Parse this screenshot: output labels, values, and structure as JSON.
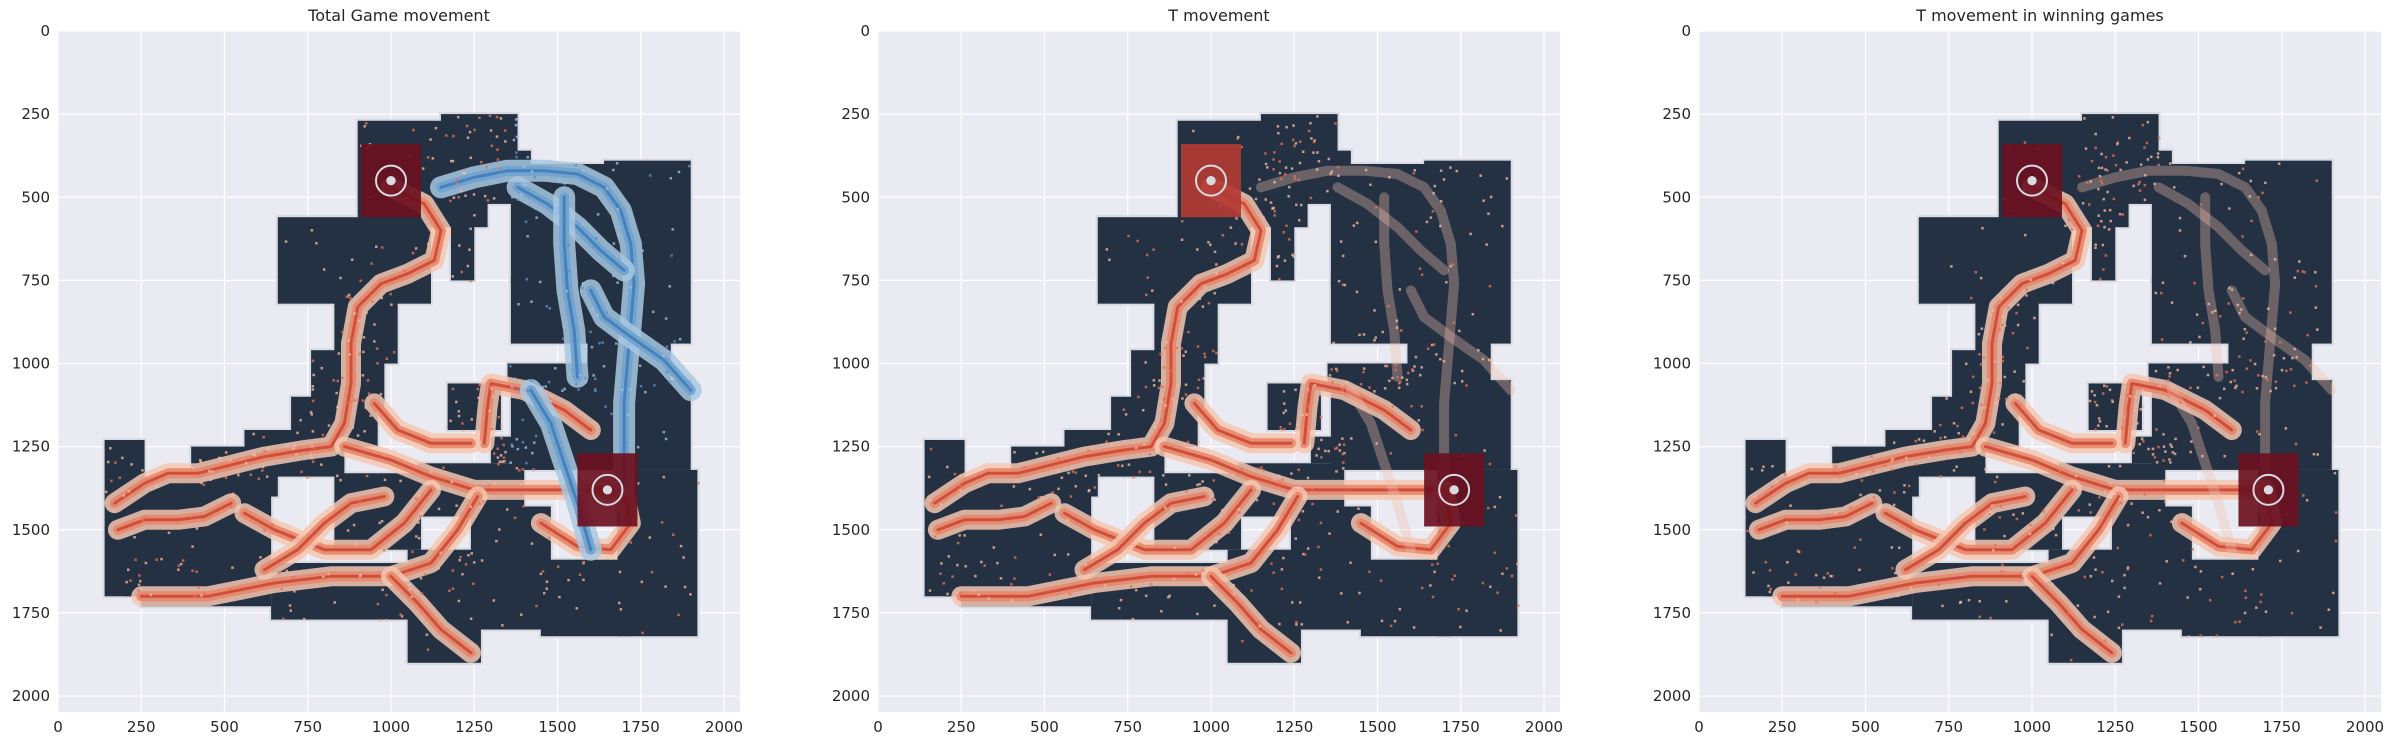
{
  "figure": {
    "background": "#ffffff",
    "axes_facecolor": "#eaeaf2",
    "grid_color": "#ffffff",
    "map_color": "#243142",
    "map_outline_color": "#d9dbe2"
  },
  "chart_data": [
    {
      "type": "heatmap",
      "title": "Total Game movement",
      "xlabel": "",
      "ylabel": "",
      "xlim": [
        0,
        2048
      ],
      "ylim": [
        2048,
        0
      ],
      "y_inverted": true,
      "grid": true,
      "xticks": [
        0,
        250,
        500,
        750,
        1000,
        1250,
        1500,
        1750,
        2000
      ],
      "yticks": [
        0,
        250,
        500,
        750,
        1000,
        1250,
        1500,
        1750,
        2000
      ],
      "colormaps": [
        "Reds",
        "Blues"
      ],
      "hotspots": [
        {
          "x": 1000,
          "y": 450,
          "intensity": "high",
          "colormap": "Reds"
        },
        {
          "x": 1650,
          "y": 1380,
          "intensity": "high",
          "colormap": "Reds"
        }
      ]
    },
    {
      "type": "heatmap",
      "title": "T movement",
      "xlabel": "",
      "ylabel": "",
      "xlim": [
        0,
        2048
      ],
      "ylim": [
        2048,
        0
      ],
      "y_inverted": true,
      "grid": true,
      "xticks": [
        0,
        250,
        500,
        750,
        1000,
        1250,
        1500,
        1750,
        2000
      ],
      "yticks": [
        0,
        250,
        500,
        750,
        1000,
        1250,
        1500,
        1750,
        2000
      ],
      "colormaps": [
        "Reds"
      ],
      "hotspots": [
        {
          "x": 1000,
          "y": 450,
          "intensity": "medium",
          "colormap": "Reds"
        },
        {
          "x": 1730,
          "y": 1380,
          "intensity": "high",
          "colormap": "Reds"
        }
      ]
    },
    {
      "type": "heatmap",
      "title": "T movement in winning games",
      "xlabel": "",
      "ylabel": "",
      "xlim": [
        0,
        2048
      ],
      "ylim": [
        2048,
        0
      ],
      "y_inverted": true,
      "grid": true,
      "xticks": [
        0,
        250,
        500,
        750,
        1000,
        1250,
        1500,
        1750,
        2000
      ],
      "yticks": [
        0,
        250,
        500,
        750,
        1000,
        1250,
        1500,
        1750,
        2000
      ],
      "colormaps": [
        "Reds"
      ],
      "hotspots": [
        {
          "x": 1000,
          "y": 450,
          "intensity": "high",
          "colormap": "Reds"
        },
        {
          "x": 1710,
          "y": 1380,
          "intensity": "high",
          "colormap": "Reds"
        }
      ]
    }
  ]
}
